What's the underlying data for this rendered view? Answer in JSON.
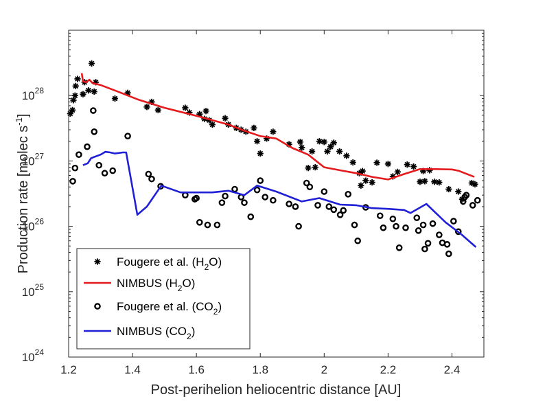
{
  "chart_data": {
    "type": "scatter",
    "xlabel": "Post-perihelion heliocentric distance [AU]",
    "ylabel": {
      "main": "Production rate [molec s",
      "sup": "-1",
      "close": "]"
    },
    "xlim": [
      1.2,
      2.5
    ],
    "ylim": [
      1e+24,
      1e+29
    ],
    "yscale": "log",
    "x_ticks": [
      "1.2",
      "1.4",
      "1.6",
      "1.8",
      "2",
      "2.2",
      "2.4"
    ],
    "x_tick_values": [
      1.2,
      1.4,
      1.6,
      1.8,
      2.0,
      2.2,
      2.4
    ],
    "y_ticks": [
      {
        "base": "10",
        "exp": "24",
        "value": 1e+24
      },
      {
        "base": "10",
        "exp": "25",
        "value": 1e+25
      },
      {
        "base": "10",
        "exp": "26",
        "value": 1e+26
      },
      {
        "base": "10",
        "exp": "27",
        "value": 1e+27
      },
      {
        "base": "10",
        "exp": "28",
        "value": 1e+28
      }
    ],
    "legend": [
      {
        "id": "fougere_h2o",
        "parts": [
          "Fougere et al. (H",
          "2",
          "O)"
        ]
      },
      {
        "id": "nimbus_h2o",
        "parts": [
          "NIMBUS (H",
          "2",
          "O)"
        ]
      },
      {
        "id": "fougere_co2",
        "parts": [
          "Fougere et al. (CO",
          "2",
          ")"
        ]
      },
      {
        "id": "nimbus_co2",
        "parts": [
          "NIMBUS (CO",
          "2",
          ")"
        ]
      }
    ],
    "legend_position": "bottom-left",
    "colors": {
      "nimbus_h2o": "#e41a1c",
      "nimbus_co2": "#1f1fd6",
      "points": "#000000",
      "axis": "#262626"
    },
    "series": [
      {
        "name": "Fougere et al. (H2O)",
        "id": "fougere_h2o",
        "style": "asterisk",
        "points": [
          [
            1.205,
            5.3e+27
          ],
          [
            1.212,
            6e+27
          ],
          [
            1.215,
            8.5e+27
          ],
          [
            1.22,
            1e+28
          ],
          [
            1.222,
            1.4e+28
          ],
          [
            1.228,
            1.8e+28
          ],
          [
            1.245,
            1.05e+28
          ],
          [
            1.25,
            1.6e+28
          ],
          [
            1.262,
            1.2e+28
          ],
          [
            1.272,
            3.1e+28
          ],
          [
            1.28,
            1.15e+28
          ],
          [
            1.285,
            1.6e+28
          ],
          [
            1.345,
            9e+27
          ],
          [
            1.385,
            1.1e+28
          ],
          [
            1.445,
            6.7e+27
          ],
          [
            1.46,
            8e+27
          ],
          [
            1.48,
            6e+27
          ],
          [
            1.565,
            6.5e+27
          ],
          [
            1.578,
            5.5e+27
          ],
          [
            1.61,
            5.2e+27
          ],
          [
            1.625,
            4.4e+27
          ],
          [
            1.63,
            5.8e+27
          ],
          [
            1.64,
            4.2e+27
          ],
          [
            1.65,
            3.6e+27
          ],
          [
            1.69,
            4.5e+27
          ],
          [
            1.7,
            3.6e+27
          ],
          [
            1.725,
            3.2e+27
          ],
          [
            1.74,
            3e+27
          ],
          [
            1.755,
            2.8e+27
          ],
          [
            1.78,
            3.2e+27
          ],
          [
            1.79,
            2e+27
          ],
          [
            1.8,
            1.3e+27
          ],
          [
            1.82,
            2.2e+27
          ],
          [
            1.84,
            2.8e+27
          ],
          [
            1.89,
            1.8e+27
          ],
          [
            1.925,
            1.95e+27
          ],
          [
            1.93,
            1.6e+27
          ],
          [
            1.95,
            7.8e+26
          ],
          [
            1.962,
            1.4e+27
          ],
          [
            1.972,
            8e+26
          ],
          [
            1.985,
            2e+27
          ],
          [
            2.0,
            1.95e+27
          ],
          [
            2.01,
            1.4e+27
          ],
          [
            2.02,
            1.65e+27
          ],
          [
            2.03,
            1.9e+27
          ],
          [
            2.048,
            1.4e+27
          ],
          [
            2.07,
            1.2e+27
          ],
          [
            2.09,
            9.5e+26
          ],
          [
            2.11,
            6.5e+26
          ],
          [
            2.115,
            4.2e+26
          ],
          [
            2.12,
            7e+26
          ],
          [
            2.13,
            5e+26
          ],
          [
            2.15,
            4.7e+26
          ],
          [
            2.165,
            9.4e+26
          ],
          [
            2.2,
            9e+26
          ],
          [
            2.215,
            5.8e+26
          ],
          [
            2.23,
            6.8e+26
          ],
          [
            2.26,
            8.8e+26
          ],
          [
            2.28,
            8.2e+26
          ],
          [
            2.3,
            4.8e+26
          ],
          [
            2.31,
            7e+26
          ],
          [
            2.315,
            4.9e+26
          ],
          [
            2.33,
            7.2e+26
          ],
          [
            2.345,
            4.8e+26
          ],
          [
            2.36,
            4.7e+26
          ],
          [
            2.39,
            3.7e+26
          ],
          [
            2.42,
            3.4e+26
          ],
          [
            2.432,
            2.6e+26
          ],
          [
            2.462,
            4.6e+26
          ],
          [
            2.472,
            4.4e+26
          ]
        ]
      },
      {
        "name": "NIMBUS (H2O)",
        "id": "nimbus_h2o",
        "style": "line",
        "points": [
          [
            1.241,
            2.2e+28
          ],
          [
            1.245,
            1.65e+28
          ],
          [
            1.255,
            1.6e+28
          ],
          [
            1.265,
            1.75e+28
          ],
          [
            1.275,
            1.55e+28
          ],
          [
            1.3,
            1.45e+28
          ],
          [
            1.35,
            1.17e+28
          ],
          [
            1.42,
            8.6e+27
          ],
          [
            1.5,
            6.5e+27
          ],
          [
            1.6,
            4.9e+27
          ],
          [
            1.7,
            3.6e+27
          ],
          [
            1.75,
            2.9e+27
          ],
          [
            1.8,
            2.4e+27
          ],
          [
            1.85,
            2.2e+27
          ],
          [
            1.9,
            1.58e+27
          ],
          [
            1.95,
            1.25e+27
          ],
          [
            2.0,
            8e+26
          ],
          [
            2.05,
            7.2e+26
          ],
          [
            2.1,
            6.5e+26
          ],
          [
            2.15,
            5.7e+26
          ],
          [
            2.2,
            5.2e+26
          ],
          [
            2.25,
            6.3e+26
          ],
          [
            2.3,
            7.5e+26
          ],
          [
            2.35,
            7.5e+26
          ],
          [
            2.4,
            7.4e+26
          ],
          [
            2.42,
            7.1e+26
          ],
          [
            2.47,
            5.7e+26
          ]
        ]
      },
      {
        "name": "Fougere et al. (CO2)",
        "id": "fougere_co2",
        "style": "circle",
        "points": [
          [
            1.213,
            4.9e+26
          ],
          [
            1.22,
            7.8e+26
          ],
          [
            1.232,
            1.25e+27
          ],
          [
            1.258,
            1.65e+27
          ],
          [
            1.277,
            5.9e+27
          ],
          [
            1.28,
            2.8e+27
          ],
          [
            1.295,
            8.6e+26
          ],
          [
            1.313,
            6.5e+26
          ],
          [
            1.338,
            7.1e+26
          ],
          [
            1.385,
            2.4e+27
          ],
          [
            1.45,
            6.3e+26
          ],
          [
            1.46,
            5.3e+26
          ],
          [
            1.488,
            4.1e+26
          ],
          [
            1.565,
            3e+26
          ],
          [
            1.595,
            2.6e+26
          ],
          [
            1.6,
            2.7e+26
          ],
          [
            1.61,
            1.15e+26
          ],
          [
            1.635,
            1.05e+26
          ],
          [
            1.665,
            1.05e+26
          ],
          [
            1.68,
            2.3e+26
          ],
          [
            1.69,
            2.9e+26
          ],
          [
            1.72,
            3.7e+26
          ],
          [
            1.74,
            2.8e+26
          ],
          [
            1.75,
            2.3e+26
          ],
          [
            1.77,
            1.4e+26
          ],
          [
            1.79,
            3.6e+26
          ],
          [
            1.8,
            5e+26
          ],
          [
            1.815,
            2.8e+26
          ],
          [
            1.84,
            2.5e+26
          ],
          [
            1.89,
            2.2e+26
          ],
          [
            1.91,
            2e+26
          ],
          [
            1.92,
            1e+26
          ],
          [
            1.945,
            4.6e+26
          ],
          [
            1.955,
            4e+26
          ],
          [
            1.98,
            2.1e+26
          ],
          [
            2.0,
            3.4e+26
          ],
          [
            2.015,
            2e+26
          ],
          [
            2.03,
            1.8e+26
          ],
          [
            2.05,
            1.5e+26
          ],
          [
            2.06,
            1.75e+26
          ],
          [
            2.075,
            3.1e+26
          ],
          [
            2.095,
            1.05e+26
          ],
          [
            2.105,
            6e+25
          ],
          [
            2.13,
            1.95e+26
          ],
          [
            2.175,
            1.45e+26
          ],
          [
            2.185,
            9.5e+25
          ],
          [
            2.215,
            1.3e+26
          ],
          [
            2.225,
            1e+26
          ],
          [
            2.235,
            4.7e+25
          ],
          [
            2.255,
            9.5e+25
          ],
          [
            2.29,
            1.35e+26
          ],
          [
            2.295,
            8.6e+25
          ],
          [
            2.31,
            1.05e+26
          ],
          [
            2.315,
            4.5e+25
          ],
          [
            2.325,
            5.5e+25
          ],
          [
            2.34,
            1.1e+26
          ],
          [
            2.36,
            7.4e+25
          ],
          [
            2.37,
            5.6e+25
          ],
          [
            2.385,
            5.3e+25
          ],
          [
            2.39,
            3.8e+25
          ],
          [
            2.405,
            1.2e+26
          ],
          [
            2.42,
            8.3e+25
          ],
          [
            2.435,
            2.4e+26
          ],
          [
            2.44,
            2.8e+26
          ],
          [
            2.445,
            3e+26
          ],
          [
            2.465,
            2.1e+26
          ],
          [
            2.48,
            2.5e+26
          ]
        ]
      },
      {
        "name": "NIMBUS (CO2)",
        "id": "nimbus_co2",
        "style": "line",
        "points": [
          [
            1.245,
            8.6e+26
          ],
          [
            1.26,
            9.2e+26
          ],
          [
            1.27,
            1.1e+27
          ],
          [
            1.28,
            1.15e+27
          ],
          [
            1.3,
            1.25e+27
          ],
          [
            1.315,
            1.38e+27
          ],
          [
            1.33,
            1.35e+27
          ],
          [
            1.345,
            1.3e+27
          ],
          [
            1.37,
            1.35e+27
          ],
          [
            1.38,
            1.35e+27
          ],
          [
            1.415,
            1.5e+26
          ],
          [
            1.445,
            2e+26
          ],
          [
            1.49,
            4.2e+26
          ],
          [
            1.55,
            3.3e+26
          ],
          [
            1.65,
            3.3e+26
          ],
          [
            1.7,
            3.5e+26
          ],
          [
            1.75,
            3e+26
          ],
          [
            1.79,
            4.2e+26
          ],
          [
            1.85,
            3.4e+26
          ],
          [
            1.93,
            2.4e+26
          ],
          [
            1.985,
            2.7e+26
          ],
          [
            2.05,
            2.15e+26
          ],
          [
            2.1,
            2.1e+26
          ],
          [
            2.15,
            1.9e+26
          ],
          [
            2.2,
            1.85e+26
          ],
          [
            2.25,
            1.78e+26
          ],
          [
            2.27,
            1.6e+26
          ],
          [
            2.32,
            2.2e+26
          ],
          [
            2.38,
            1.15e+26
          ],
          [
            2.43,
            7.5e+25
          ],
          [
            2.475,
            4.8e+25
          ]
        ]
      }
    ]
  }
}
